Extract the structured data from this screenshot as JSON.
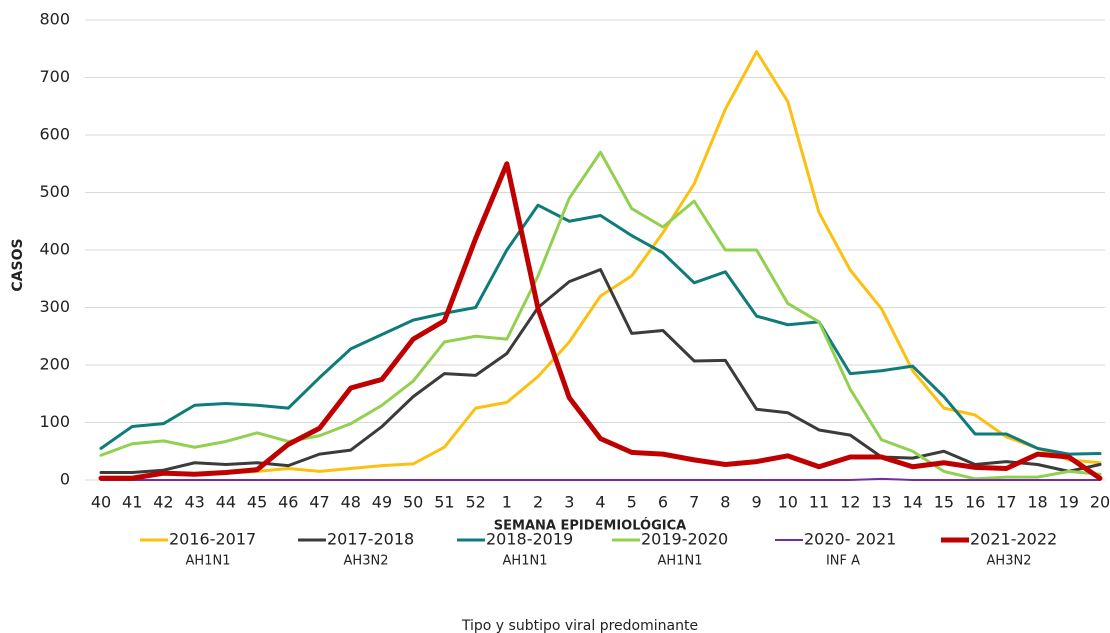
{
  "chart_data": {
    "type": "line",
    "x_label": "SEMANA EPIDEMIOLÓGICA",
    "y_label": "CASOS",
    "legend_title": "Tipo y subtipo viral predominante",
    "grid": true,
    "legend_position": "bottom",
    "categories": [
      40,
      41,
      42,
      43,
      44,
      45,
      46,
      47,
      48,
      49,
      50,
      51,
      52,
      1,
      2,
      3,
      4,
      5,
      6,
      7,
      8,
      9,
      10,
      11,
      12,
      13,
      14,
      15,
      16,
      17,
      18,
      19,
      20
    ],
    "ylim": [
      0,
      800
    ],
    "yticks": [
      0,
      100,
      200,
      300,
      400,
      500,
      600,
      700,
      800
    ],
    "series": [
      {
        "name": "2016-2017",
        "subtype": "AH1N1",
        "color": "#fcc010",
        "linewidth": 3,
        "values": [
          5,
          5,
          10,
          10,
          12,
          15,
          20,
          15,
          20,
          25,
          28,
          57,
          125,
          135,
          180,
          240,
          320,
          355,
          430,
          515,
          645,
          745,
          658,
          465,
          365,
          298,
          190,
          125,
          113,
          75,
          55,
          35,
          30
        ]
      },
      {
        "name": "2017-2018",
        "subtype": "AH3N2",
        "color": "#3b3b3b",
        "linewidth": 3,
        "values": [
          13,
          13,
          17,
          30,
          27,
          30,
          25,
          45,
          52,
          93,
          145,
          185,
          182,
          220,
          300,
          345,
          366,
          255,
          260,
          207,
          208,
          123,
          117,
          87,
          78,
          40,
          38,
          50,
          27,
          32,
          27,
          15,
          27
        ]
      },
      {
        "name": "2018-2019",
        "subtype": "AH1N1",
        "color": "#0f7b7b",
        "linewidth": 3,
        "values": [
          55,
          93,
          98,
          130,
          133,
          130,
          125,
          178,
          228,
          253,
          278,
          290,
          300,
          400,
          478,
          450,
          460,
          425,
          395,
          343,
          362,
          285,
          270,
          275,
          185,
          190,
          198,
          145,
          80,
          80,
          55,
          45,
          46
        ]
      },
      {
        "name": "2019-2020",
        "subtype": "AH1N1",
        "color": "#92d050",
        "linewidth": 3,
        "values": [
          43,
          63,
          68,
          57,
          67,
          82,
          67,
          77,
          98,
          130,
          172,
          240,
          250,
          245,
          355,
          490,
          570,
          472,
          440,
          485,
          400,
          400,
          307,
          275,
          158,
          70,
          50,
          15,
          2,
          5,
          5,
          15,
          10
        ]
      },
      {
        "name": "2020- 2021",
        "subtype": "INF A",
        "color": "#7030a0",
        "linewidth": 2,
        "values": [
          0,
          0,
          0,
          0,
          0,
          0,
          0,
          0,
          0,
          0,
          0,
          0,
          0,
          0,
          0,
          0,
          0,
          0,
          0,
          0,
          0,
          0,
          0,
          0,
          0,
          2,
          0,
          0,
          0,
          0,
          0,
          0,
          0
        ]
      },
      {
        "name": "2021-2022",
        "subtype": "AH3N2",
        "color": "#c00000",
        "linewidth": 5,
        "values": [
          3,
          3,
          12,
          10,
          13,
          18,
          62,
          90,
          160,
          175,
          245,
          277,
          420,
          550,
          298,
          143,
          72,
          48,
          45,
          35,
          27,
          32,
          42,
          23,
          40,
          40,
          23,
          30,
          22,
          20,
          45,
          40,
          3
        ]
      }
    ]
  }
}
